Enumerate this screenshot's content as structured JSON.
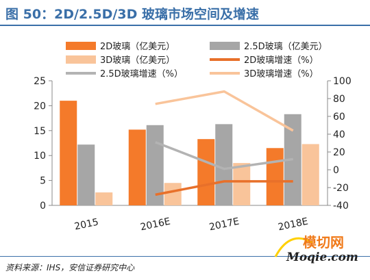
{
  "title": "图 50：2D/2.5D/3D 玻璃市场空间及增速",
  "source": "资料来源：IHS，安信证券研究中心",
  "watermark": {
    "text": "模切网",
    "sub": "Moqie.com"
  },
  "colors": {
    "title": "#3a6fa8",
    "bar_2d": "#f47a2a",
    "bar_25d": "#a6a6a6",
    "bar_3d": "#f9c49a",
    "line_2d": "#e8702a",
    "line_25d": "#b3b3b3",
    "line_3d": "#f9c49a"
  },
  "chart_data": {
    "type": "bar",
    "categories": [
      "2015",
      "2016E",
      "2017E",
      "2018E"
    ],
    "left_axis": {
      "ylim": [
        0,
        25
      ],
      "ticks": [
        0,
        5,
        10,
        15,
        20,
        25
      ]
    },
    "right_axis": {
      "ylim": [
        -40,
        100
      ],
      "ticks": [
        -40,
        -20,
        0,
        20,
        40,
        60,
        80,
        100
      ]
    },
    "series": [
      {
        "name": "2D玻璃（亿美元）",
        "type": "bar",
        "axis": "left",
        "color": "#f47a2a",
        "values": [
          21.0,
          15.2,
          13.3,
          11.5
        ]
      },
      {
        "name": "2.5D玻璃（亿美元）",
        "type": "bar",
        "axis": "left",
        "color": "#a6a6a6",
        "values": [
          12.2,
          16.1,
          16.3,
          18.3
        ]
      },
      {
        "name": "3D玻璃（亿美元）",
        "type": "bar",
        "axis": "left",
        "color": "#f9c49a",
        "values": [
          2.6,
          4.5,
          8.5,
          12.3
        ]
      },
      {
        "name": "2D玻璃增速（%）",
        "type": "line",
        "axis": "right",
        "color": "#e8702a",
        "values": [
          null,
          -28,
          -13,
          -13
        ]
      },
      {
        "name": "2.5D玻璃增速（%）",
        "type": "line",
        "axis": "right",
        "color": "#b3b3b3",
        "values": [
          null,
          31,
          1,
          12
        ]
      },
      {
        "name": "3D玻璃增速（%）",
        "type": "line",
        "axis": "right",
        "color": "#f9c49a",
        "values": [
          null,
          74,
          88,
          44
        ]
      }
    ],
    "legend_position": "top",
    "grid": false
  }
}
